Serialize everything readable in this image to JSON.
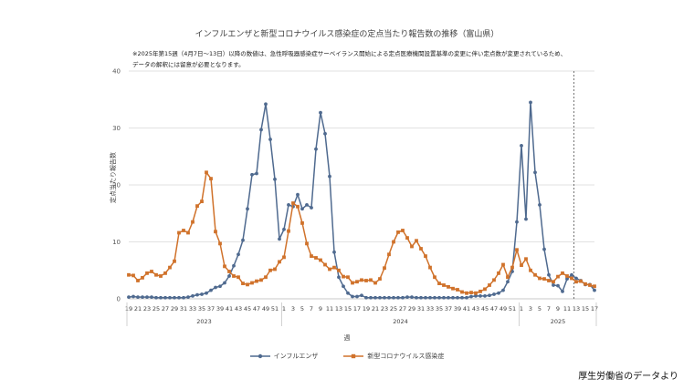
{
  "page": {
    "title": "インフルエンザと新型コロナウイルス感染症の定点当たり報告数の推移（富山県）",
    "note_line1": "※2025年第15週（4月7日～13日）以降の数値は、急性呼吸器感染症サーベイランス開始による定点医療機関設置基準の変更に伴い定点数が変更されているため、",
    "note_line2": "データの解釈には留意が必要となります。",
    "source": "厚生労働省のデータより"
  },
  "chart_data": {
    "type": "line",
    "title": "インフルエンザと新型コロナウイルス感染症の定点当たり報告数の推移（富山県）",
    "xlabel": "週",
    "ylabel": "定点当たり報告数",
    "ylim": [
      0,
      40
    ],
    "yticks": [
      "0",
      "10",
      "20",
      "30",
      "40"
    ],
    "grid": true,
    "legend_position": "bottom",
    "x_tick_labels": [
      "19",
      "21",
      "23",
      "25",
      "27",
      "29",
      "31",
      "33",
      "35",
      "37",
      "39",
      "41",
      "43",
      "45",
      "47",
      "49",
      "51",
      "1",
      "3",
      "5",
      "7",
      "9",
      "11",
      "13",
      "15",
      "17",
      "19",
      "21",
      "23",
      "25",
      "27",
      "29",
      "31",
      "33",
      "35",
      "37",
      "39",
      "41",
      "43",
      "45",
      "47",
      "49",
      "51",
      "1",
      "3",
      "5",
      "7",
      "9",
      "11",
      "13",
      "15",
      "17"
    ],
    "year_groups": [
      {
        "label": "2023",
        "start_index": 0,
        "end_index": 33
      },
      {
        "label": "2024",
        "start_index": 34,
        "end_index": 85
      },
      {
        "label": "2025",
        "start_index": 86,
        "end_index": 102
      }
    ],
    "reference_line": {
      "index": 97,
      "label": "2025年第15週",
      "style": "dashed"
    },
    "colors": {
      "influenza": "#4f6a8f",
      "covid": "#d0722b",
      "grid": "#d9d9d9",
      "reference": "#555555"
    },
    "series": [
      {
        "name": "インフルエンザ",
        "color": "#4f6a8f",
        "values": [
          0.3,
          0.4,
          0.3,
          0.3,
          0.3,
          0.3,
          0.2,
          0.2,
          0.2,
          0.2,
          0.2,
          0.2,
          0.2,
          0.3,
          0.5,
          0.7,
          0.8,
          1.0,
          1.5,
          2.0,
          2.2,
          2.8,
          4.0,
          5.8,
          7.8,
          10.3,
          15.8,
          21.8,
          22.0,
          29.7,
          34.2,
          28.0,
          21.0,
          10.5,
          12.2,
          16.5,
          16.2,
          18.3,
          15.8,
          16.5,
          16.0,
          26.3,
          32.7,
          29.0,
          21.5,
          8.2,
          3.8,
          2.2,
          1.0,
          0.4,
          0.4,
          0.6,
          0.2,
          0.2,
          0.2,
          0.2,
          0.2,
          0.2,
          0.2,
          0.2,
          0.2,
          0.3,
          0.3,
          0.2,
          0.2,
          0.2,
          0.2,
          0.2,
          0.2,
          0.2,
          0.2,
          0.2,
          0.2,
          0.2,
          0.2,
          0.4,
          0.5,
          0.5,
          0.5,
          0.6,
          0.8,
          1.0,
          1.5,
          3.0,
          4.8,
          13.5,
          26.9,
          14.0,
          34.5,
          22.2,
          16.5,
          8.7,
          4.2,
          2.4,
          2.3,
          1.3,
          3.5,
          4.2,
          3.6,
          3.2,
          2.5,
          2.5,
          1.5
        ]
      },
      {
        "name": "新型コロナウイルス感染症",
        "color": "#d0722b",
        "values": [
          4.2,
          4.1,
          3.2,
          3.7,
          4.5,
          4.8,
          4.2,
          4.0,
          4.5,
          5.5,
          6.6,
          11.6,
          12.0,
          11.6,
          13.5,
          16.3,
          17.1,
          22.2,
          21.1,
          11.8,
          9.7,
          5.7,
          4.8,
          4.0,
          3.8,
          2.7,
          2.5,
          2.8,
          3.1,
          3.3,
          3.8,
          5.0,
          5.2,
          6.5,
          7.3,
          11.9,
          16.8,
          16.2,
          13.3,
          9.7,
          7.5,
          7.2,
          6.8,
          6.0,
          5.2,
          5.5,
          5.0,
          3.9,
          3.8,
          2.8,
          3.0,
          3.3,
          3.2,
          3.3,
          2.8,
          3.5,
          5.4,
          7.8,
          10.0,
          11.7,
          12.0,
          10.7,
          9.2,
          10.2,
          8.8,
          7.5,
          5.5,
          3.8,
          2.7,
          2.4,
          2.1,
          1.8,
          1.6,
          1.2,
          1.0,
          1.1,
          1.0,
          1.3,
          1.7,
          2.4,
          3.3,
          4.5,
          6.0,
          3.8,
          5.5,
          8.6,
          5.9,
          7.0,
          5.0,
          4.2,
          3.6,
          3.5,
          3.2,
          3.0,
          3.9,
          4.5,
          4.0,
          3.6,
          3.0,
          3.1,
          2.6,
          2.4,
          2.2
        ]
      }
    ]
  }
}
